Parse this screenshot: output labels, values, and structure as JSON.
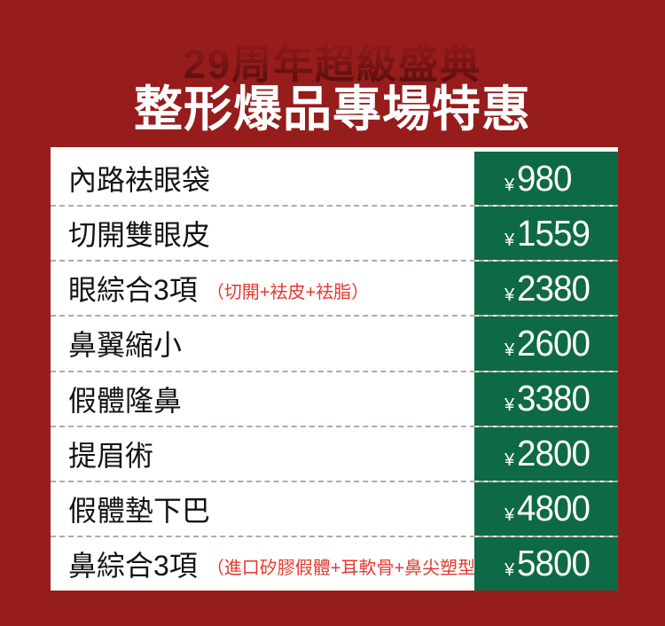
{
  "theme": {
    "background_red": "#971c1c",
    "panel_green": "#0e6a44",
    "note_red": "#e5392e",
    "title_white": "#ffffff",
    "subtitle_dark_red": "#4e0d0d"
  },
  "header": {
    "subtitle": "29周年超級盛典",
    "title": "整形爆品專場特惠"
  },
  "price_table": {
    "currency_symbol": "¥",
    "rows": [
      {
        "label": "內路袪眼袋",
        "note": "",
        "price": "980"
      },
      {
        "label": "切開雙眼皮",
        "note": "",
        "price": "1559"
      },
      {
        "label": "眼綜合3項",
        "note": "（切開+袪皮+袪脂）",
        "price": "2380"
      },
      {
        "label": "鼻翼縮小",
        "note": "",
        "price": "2600"
      },
      {
        "label": "假體隆鼻",
        "note": "",
        "price": "3380"
      },
      {
        "label": "提眉術",
        "note": "",
        "price": "2800"
      },
      {
        "label": "假體墊下巴",
        "note": "",
        "price": "4800"
      },
      {
        "label": "鼻綜合3項",
        "note": "（進口矽膠假體+耳軟骨+鼻尖塑型）",
        "price": "5800"
      }
    ]
  }
}
